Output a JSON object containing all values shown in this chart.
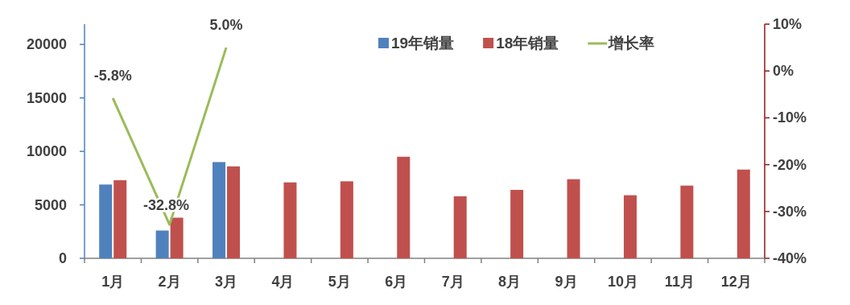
{
  "chart_data": {
    "type": "bar",
    "categories": [
      "1月",
      "2月",
      "3月",
      "4月",
      "5月",
      "6月",
      "7月",
      "8月",
      "9月",
      "10月",
      "11月",
      "12月"
    ],
    "series": [
      {
        "name": "19年销量",
        "color": "#4f81bd",
        "values": [
          6900,
          2600,
          9000,
          null,
          null,
          null,
          null,
          null,
          null,
          null,
          null,
          null
        ]
      },
      {
        "name": "18年销量",
        "color": "#c0504d",
        "values": [
          7300,
          3800,
          8600,
          7100,
          7200,
          9500,
          5800,
          6400,
          7400,
          5900,
          6800,
          8300
        ]
      },
      {
        "name": "增长率",
        "type": "line",
        "axis": "y2",
        "color": "#9bbb59",
        "values": [
          -5.8,
          -32.8,
          5.0,
          null,
          null,
          null,
          null,
          null,
          null,
          null,
          null,
          null
        ],
        "value_labels": [
          "-5.8%",
          "-32.8%",
          "5.0%",
          null,
          null,
          null,
          null,
          null,
          null,
          null,
          null,
          null
        ]
      }
    ],
    "ylim": [
      0,
      21900
    ],
    "yticks": [
      0,
      5000,
      10000,
      15000,
      20000
    ],
    "y2lim": [
      -40,
      10
    ],
    "y2ticks": [
      {
        "value": -40,
        "label": "-40%"
      },
      {
        "value": -30,
        "label": "-30%"
      },
      {
        "value": -20,
        "label": "-20%"
      },
      {
        "value": -10,
        "label": "-10%"
      },
      {
        "value": 0,
        "label": "0%"
      },
      {
        "value": 10,
        "label": "10%"
      }
    ],
    "legend": "top right",
    "marker": "none"
  }
}
